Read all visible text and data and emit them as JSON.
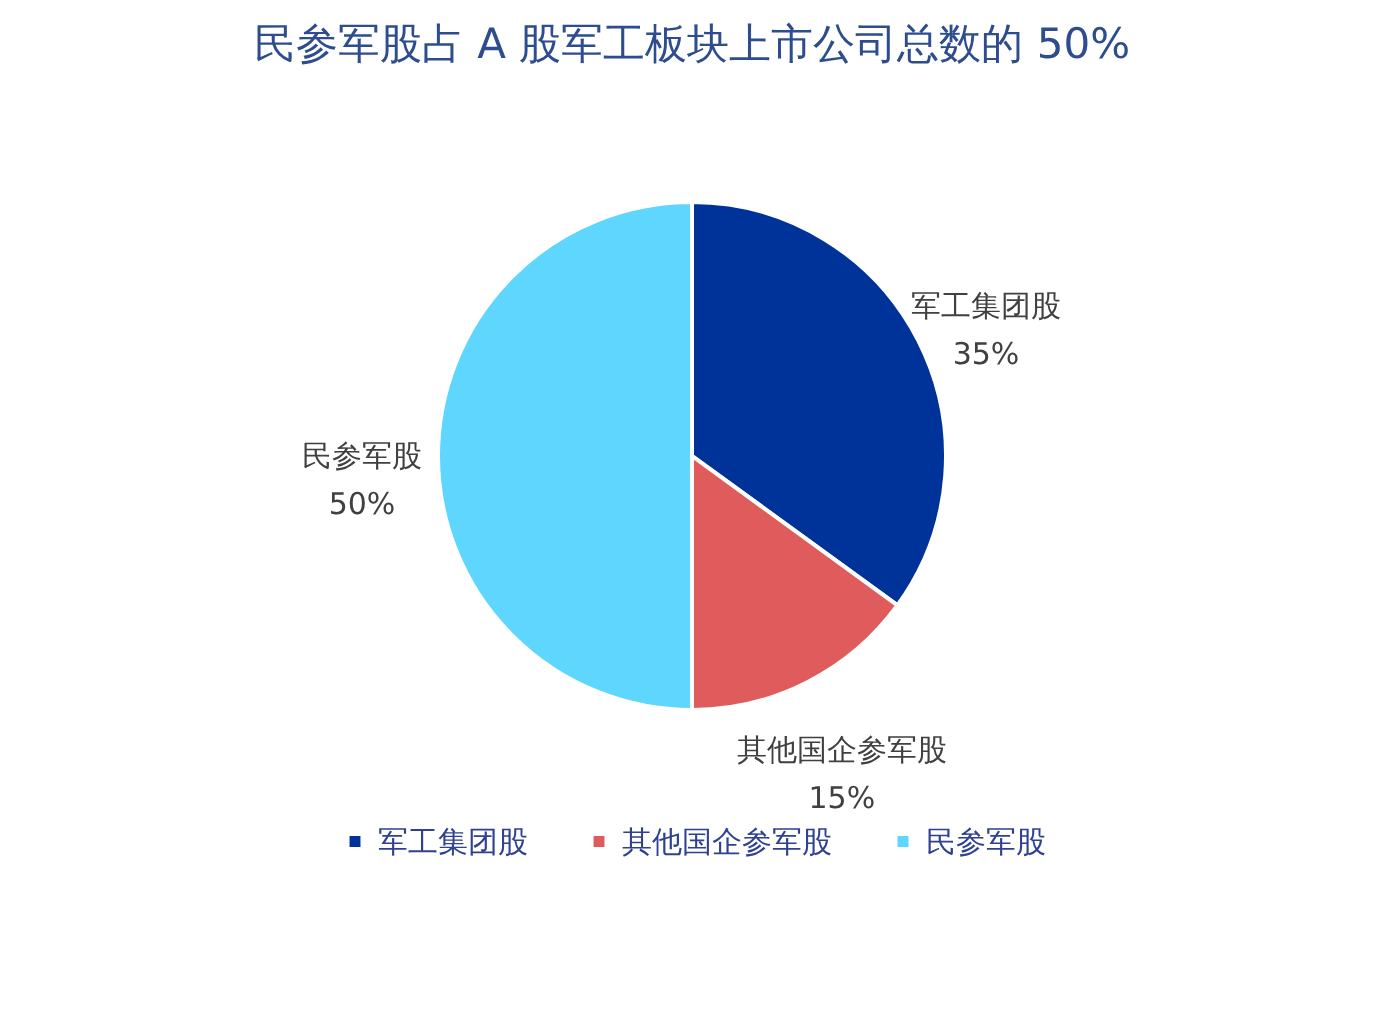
{
  "chart_data": {
    "type": "pie",
    "title": "民参军股占 A 股军工板块上市公司总数的 50%",
    "categories": [
      "军工集团股",
      "其他国企参军股",
      "民参军股"
    ],
    "values": [
      35,
      15,
      50
    ],
    "colors": [
      "#003399",
      "#e05c5c",
      "#5fd6fd"
    ],
    "value_labels": [
      "35%",
      "15%",
      "50%"
    ],
    "legend": "bottom"
  }
}
